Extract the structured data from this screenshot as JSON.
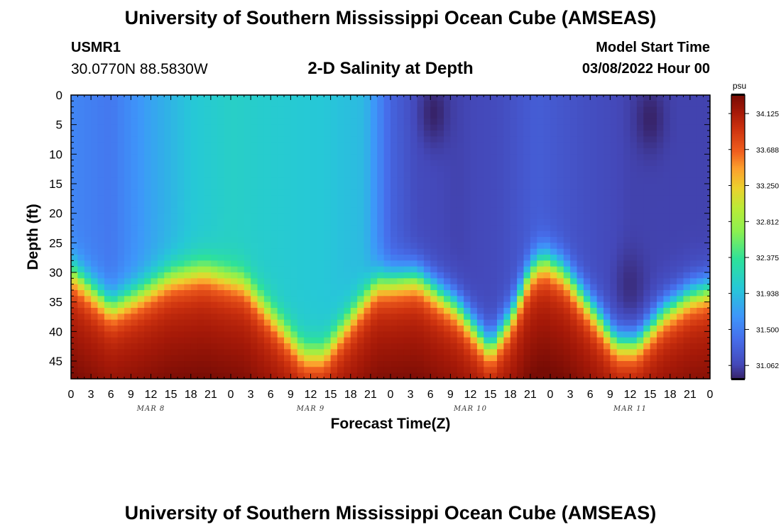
{
  "header": {
    "title": "University of Southern Mississippi Ocean Cube (AMSEAS)",
    "station": "USMR1",
    "coords": "30.0770N  88.5830W",
    "subtitle": "2-D Salinity at Depth",
    "model_start_label": "Model Start Time",
    "model_start_value": "03/08/2022 Hour 00"
  },
  "footer": {
    "title": "University of Southern Mississippi Ocean Cube (AMSEAS)"
  },
  "chart_data": {
    "type": "heatmap",
    "title": "2-D Salinity at Depth",
    "xlabel": "Forecast Time(Z)",
    "ylabel": "Depth (ft)",
    "x_range_hours": [
      0,
      96
    ],
    "x_tick_step_hours": 3,
    "x_tick_labels": [
      "0",
      "3",
      "6",
      "9",
      "12",
      "15",
      "18",
      "21",
      "0",
      "3",
      "6",
      "9",
      "12",
      "15",
      "18",
      "21",
      "0",
      "3",
      "6",
      "9",
      "12",
      "15",
      "18",
      "21",
      "0",
      "3",
      "6",
      "9",
      "12",
      "15",
      "18",
      "21",
      "0"
    ],
    "day_labels": [
      {
        "label": "MAR 8",
        "hour": 12
      },
      {
        "label": "MAR 9",
        "hour": 36
      },
      {
        "label": "MAR 10",
        "hour": 60
      },
      {
        "label": "MAR 11",
        "hour": 84
      }
    ],
    "y_range_ft": [
      0,
      48
    ],
    "y_ticks": [
      0,
      5,
      10,
      15,
      20,
      25,
      30,
      35,
      40,
      45
    ],
    "colorbar": {
      "unit": "psu",
      "min": 30.9,
      "max": 34.35,
      "tick_values": [
        34.125,
        33.688,
        33.25,
        32.812,
        32.375,
        31.938,
        31.5,
        31.062
      ],
      "tick_labels": [
        "34.125",
        "33.688",
        "33.250",
        "32.812",
        "32.375",
        "31.938",
        "31.500",
        "31.062"
      ]
    },
    "halocline_depth_ft": [
      {
        "hour": 0,
        "depth": 30
      },
      {
        "hour": 6,
        "depth": 36
      },
      {
        "hour": 10,
        "depth": 34
      },
      {
        "hour": 15,
        "depth": 31
      },
      {
        "hour": 20,
        "depth": 30
      },
      {
        "hour": 26,
        "depth": 32
      },
      {
        "hour": 32,
        "depth": 40
      },
      {
        "hour": 35,
        "depth": 44
      },
      {
        "hour": 38,
        "depth": 44
      },
      {
        "hour": 42,
        "depth": 38
      },
      {
        "hour": 46,
        "depth": 32
      },
      {
        "hour": 52,
        "depth": 31
      },
      {
        "hour": 58,
        "depth": 36
      },
      {
        "hour": 63,
        "depth": 43
      },
      {
        "hour": 66,
        "depth": 38
      },
      {
        "hour": 69,
        "depth": 30
      },
      {
        "hour": 71,
        "depth": 28
      },
      {
        "hour": 74,
        "depth": 30
      },
      {
        "hour": 78,
        "depth": 36
      },
      {
        "hour": 82,
        "depth": 42
      },
      {
        "hour": 85,
        "depth": 42
      },
      {
        "hour": 89,
        "depth": 37
      },
      {
        "hour": 93,
        "depth": 34
      },
      {
        "hour": 96,
        "depth": 33
      }
    ],
    "upper_layer": [
      {
        "hour": 0,
        "salinity": 31.55
      },
      {
        "hour": 6,
        "salinity": 31.45
      },
      {
        "hour": 12,
        "salinity": 31.75
      },
      {
        "hour": 18,
        "salinity": 32.0
      },
      {
        "hour": 24,
        "salinity": 32.1
      },
      {
        "hour": 30,
        "salinity": 32.05
      },
      {
        "hour": 38,
        "salinity": 32.0
      },
      {
        "hour": 44,
        "salinity": 31.9
      },
      {
        "hour": 48,
        "salinity": 31.3
      },
      {
        "hour": 52,
        "salinity": 31.1
      },
      {
        "hour": 58,
        "salinity": 31.05
      },
      {
        "hour": 64,
        "salinity": 31.1
      },
      {
        "hour": 70,
        "salinity": 31.25
      },
      {
        "hour": 76,
        "salinity": 31.15
      },
      {
        "hour": 84,
        "salinity": 31.05
      },
      {
        "hour": 96,
        "salinity": 31.05
      }
    ],
    "freshwater_pockets": [
      {
        "hour": 54.5,
        "depth": 3,
        "salinity": 30.9
      },
      {
        "hour": 87,
        "depth": 4,
        "salinity": 30.9
      },
      {
        "hour": 84,
        "depth": 32,
        "salinity": 30.95
      }
    ],
    "bottom_salinity": 34.0
  }
}
